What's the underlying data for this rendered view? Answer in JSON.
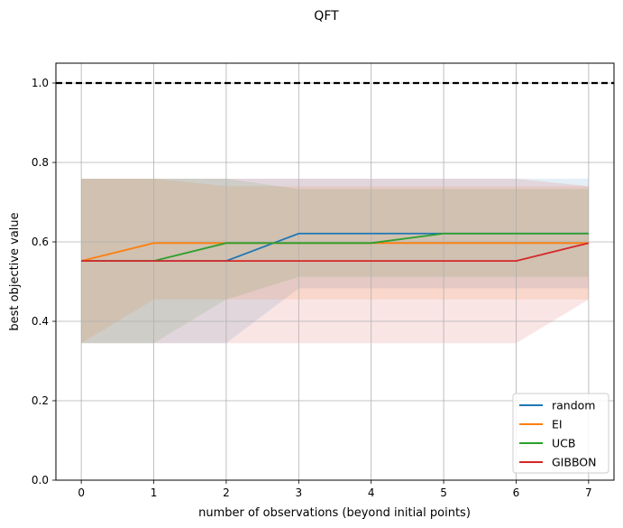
{
  "chart_data": {
    "type": "line",
    "title": "QFT",
    "xlabel": "number of observations (beyond initial points)",
    "ylabel": "best objective value",
    "xlim": [
      -0.35,
      7.35
    ],
    "ylim": [
      0.0,
      1.05
    ],
    "xticks": [
      0,
      1,
      2,
      3,
      4,
      5,
      6,
      7
    ],
    "yticks": [
      0.0,
      0.2,
      0.4,
      0.6,
      0.8,
      1.0
    ],
    "xtick_labels": [
      "0",
      "1",
      "2",
      "3",
      "4",
      "5",
      "6",
      "7"
    ],
    "ytick_labels": [
      "0.0",
      "0.2",
      "0.4",
      "0.6",
      "0.8",
      "1.0"
    ],
    "grid": true,
    "legend_position": "bottom-right",
    "reference_line": {
      "y": 1.0,
      "style": "dashed",
      "color": "#000000"
    },
    "x": [
      0,
      1,
      2,
      3,
      4,
      5,
      6,
      7
    ],
    "series": [
      {
        "name": "random",
        "color": "#1f77b4",
        "values": [
          0.552,
          0.552,
          0.552,
          0.621,
          0.621,
          0.621,
          0.621,
          0.621
        ],
        "band_upper": [
          0.759,
          0.759,
          0.759,
          0.759,
          0.759,
          0.759,
          0.759,
          0.759
        ],
        "band_lower": [
          0.345,
          0.345,
          0.345,
          0.483,
          0.483,
          0.483,
          0.483,
          0.483
        ]
      },
      {
        "name": "EI",
        "color": "#ff7f0e",
        "values": [
          0.552,
          0.597,
          0.597,
          0.597,
          0.597,
          0.597,
          0.597,
          0.597
        ],
        "band_upper": [
          0.759,
          0.759,
          0.74,
          0.74,
          0.74,
          0.74,
          0.74,
          0.74
        ],
        "band_lower": [
          0.345,
          0.455,
          0.455,
          0.455,
          0.455,
          0.455,
          0.455,
          0.455
        ]
      },
      {
        "name": "UCB",
        "color": "#2ca02c",
        "values": [
          0.552,
          0.552,
          0.597,
          0.597,
          0.597,
          0.621,
          0.621,
          0.621
        ],
        "band_upper": [
          0.759,
          0.759,
          0.759,
          0.733,
          0.733,
          0.733,
          0.733,
          0.733
        ],
        "band_lower": [
          0.345,
          0.345,
          0.455,
          0.512,
          0.512,
          0.512,
          0.512,
          0.512
        ]
      },
      {
        "name": "GIBBON",
        "color": "#d62728",
        "values": [
          0.552,
          0.552,
          0.552,
          0.552,
          0.552,
          0.552,
          0.552,
          0.597
        ],
        "band_upper": [
          0.759,
          0.759,
          0.759,
          0.759,
          0.759,
          0.759,
          0.759,
          0.74
        ],
        "band_lower": [
          0.345,
          0.345,
          0.345,
          0.345,
          0.345,
          0.345,
          0.345,
          0.455
        ]
      }
    ]
  }
}
